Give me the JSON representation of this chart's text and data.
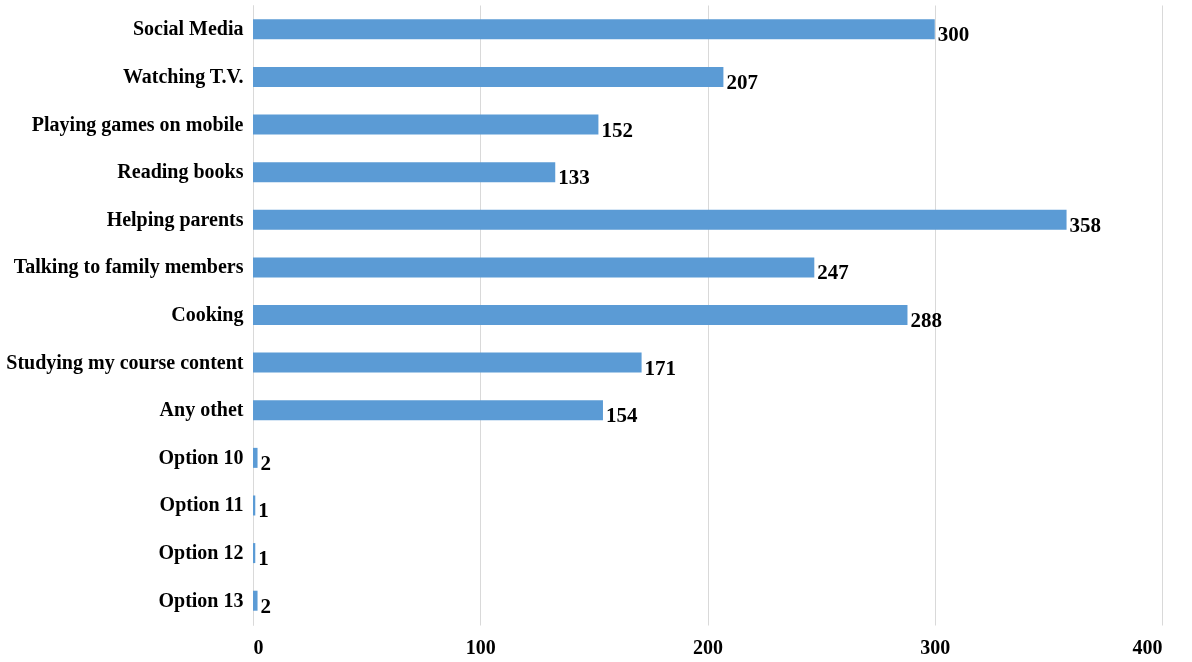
{
  "chart_data": {
    "type": "bar",
    "orientation": "horizontal",
    "categories": [
      "Social Media",
      "Watching T.V.",
      "Playing games on mobile",
      "Reading books",
      "Helping parents",
      "Talking to family members",
      "Cooking",
      "Studying my course content",
      "Any othet",
      "Option 10",
      "Option 11",
      "Option 12",
      "Option 13"
    ],
    "values": [
      300,
      207,
      152,
      133,
      358,
      247,
      288,
      171,
      154,
      2,
      1,
      1,
      2
    ],
    "color": "#5b9bd5",
    "xlim": [
      0,
      400
    ],
    "xticks": [
      0,
      100,
      200,
      300,
      400
    ],
    "grid": "x",
    "data_labels": true
  }
}
